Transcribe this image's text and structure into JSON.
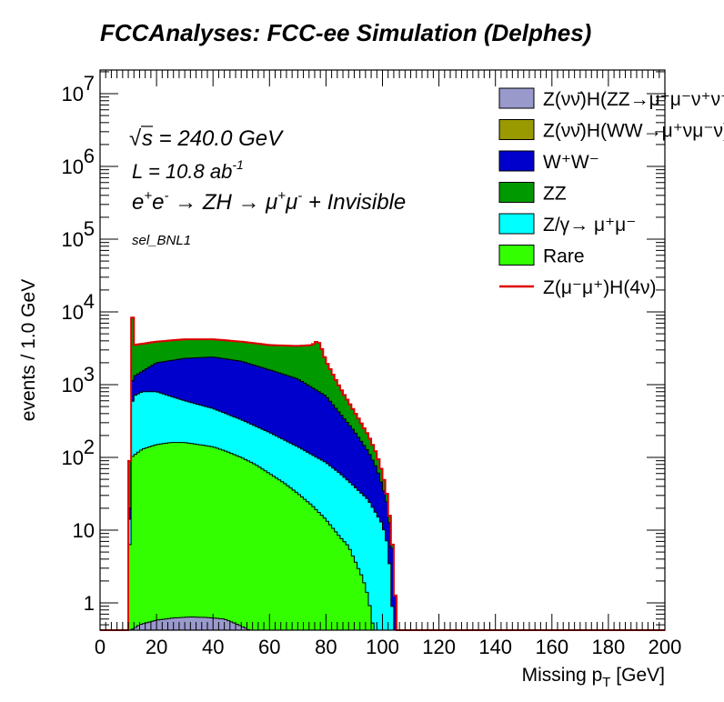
{
  "title": "FCCAnalyses: FCC-ee Simulation (Delphes)",
  "annotations": {
    "sqrt_s": "240.0 GeV",
    "lumi_value": "10.8 ab",
    "lumi_exp": "-1",
    "selection": "sel_BNL1"
  },
  "chart_data": {
    "type": "histogram",
    "title": "FCCAnalyses: FCC-ee Simulation (Delphes)",
    "xlabel": "Missing p_T [GeV]",
    "ylabel": "events / 1.0 GeV",
    "xlim": [
      0,
      200
    ],
    "ylim": [
      0.4,
      20000000
    ],
    "log_y": true,
    "stacked": true,
    "x_ticks": [
      0,
      20,
      40,
      60,
      80,
      100,
      120,
      140,
      160,
      180,
      200
    ],
    "y_ticks": [
      {
        "value": 1,
        "label": "1"
      },
      {
        "value": 10,
        "label": "10"
      },
      {
        "value": 100,
        "label": "10",
        "exp": "2"
      },
      {
        "value": 1000,
        "label": "10",
        "exp": "3"
      },
      {
        "value": 10000,
        "label": "10",
        "exp": "4"
      },
      {
        "value": 100000,
        "label": "10",
        "exp": "5"
      },
      {
        "value": 1000000,
        "label": "10",
        "exp": "6"
      },
      {
        "value": 10000000,
        "label": "10",
        "exp": "7"
      }
    ],
    "legend_position": "top-right",
    "series": [
      {
        "name": "Z(νν̄)H(ZZ→μ⁺μ⁻ν⁺ν⁻)",
        "color": "#9999cc",
        "points": [
          [
            10,
            0.4
          ],
          [
            14,
            0.5
          ],
          [
            20,
            0.58
          ],
          [
            26,
            0.62
          ],
          [
            32,
            0.64
          ],
          [
            38,
            0.63
          ],
          [
            44,
            0.6
          ],
          [
            48,
            0.52
          ],
          [
            52,
            0.44
          ],
          [
            54,
            0.4
          ],
          [
            105,
            0.4
          ]
        ]
      },
      {
        "name": "Z(νν̄)H(WW→μ⁺νμ⁻ν)",
        "color": "#999900",
        "points": [
          [
            10,
            0.4
          ],
          [
            105,
            0.4
          ]
        ]
      },
      {
        "name": "W⁺W⁻",
        "color": "#0000cc",
        "points": [
          [
            10,
            0.4
          ],
          [
            11,
            1000
          ],
          [
            12,
            1300
          ],
          [
            20,
            2000
          ],
          [
            30,
            2300
          ],
          [
            40,
            2400
          ],
          [
            50,
            2100
          ],
          [
            60,
            1600
          ],
          [
            70,
            1200
          ],
          [
            80,
            700
          ],
          [
            85,
            400
          ],
          [
            90,
            230
          ],
          [
            95,
            120
          ],
          [
            98,
            70
          ],
          [
            100,
            40
          ],
          [
            101,
            30
          ],
          [
            102,
            20
          ],
          [
            103,
            8
          ],
          [
            104,
            4
          ],
          [
            105,
            0.4
          ]
        ]
      },
      {
        "name": "ZZ",
        "color": "#009900",
        "points": [
          [
            10,
            0.4
          ],
          [
            11,
            20000
          ],
          [
            12,
            3500
          ],
          [
            20,
            3900
          ],
          [
            30,
            4200
          ],
          [
            40,
            4200
          ],
          [
            50,
            3900
          ],
          [
            60,
            3500
          ],
          [
            70,
            3400
          ],
          [
            75,
            3500
          ],
          [
            77,
            4000
          ],
          [
            78,
            3500
          ],
          [
            80,
            2100
          ],
          [
            85,
            900
          ],
          [
            90,
            430
          ],
          [
            95,
            200
          ],
          [
            98,
            110
          ],
          [
            100,
            60
          ],
          [
            101,
            40
          ],
          [
            102,
            25
          ],
          [
            103,
            10
          ],
          [
            104,
            4
          ],
          [
            105,
            0.4
          ]
        ]
      },
      {
        "name": "Z/γ→ μ⁺μ⁻",
        "color": "#00ffff",
        "points": [
          [
            10,
            0.4
          ],
          [
            11,
            500
          ],
          [
            12,
            700
          ],
          [
            15,
            800
          ],
          [
            20,
            800
          ],
          [
            30,
            600
          ],
          [
            40,
            470
          ],
          [
            50,
            330
          ],
          [
            60,
            220
          ],
          [
            70,
            140
          ],
          [
            80,
            85
          ],
          [
            85,
            60
          ],
          [
            90,
            40
          ],
          [
            95,
            26
          ],
          [
            100,
            12
          ],
          [
            102,
            6
          ],
          [
            103,
            2
          ],
          [
            104,
            0.4
          ]
        ]
      },
      {
        "name": "Rare",
        "color": "#33ff00",
        "points": [
          [
            10,
            0.4
          ],
          [
            11,
            100
          ],
          [
            15,
            130
          ],
          [
            20,
            150
          ],
          [
            25,
            160
          ],
          [
            30,
            160
          ],
          [
            35,
            150
          ],
          [
            40,
            140
          ],
          [
            45,
            120
          ],
          [
            50,
            100
          ],
          [
            55,
            80
          ],
          [
            60,
            60
          ],
          [
            65,
            45
          ],
          [
            70,
            32
          ],
          [
            75,
            22
          ],
          [
            80,
            14
          ],
          [
            85,
            8
          ],
          [
            88,
            6
          ],
          [
            90,
            4
          ],
          [
            93,
            2.2
          ],
          [
            95,
            1.2
          ],
          [
            96,
            0.7
          ],
          [
            97,
            0.4
          ]
        ]
      },
      {
        "name": "Z(μ⁻μ⁺)H(4ν)",
        "color": "#dd0000",
        "points": [
          [
            10,
            0.4
          ],
          [
            105,
            0.4
          ]
        ]
      }
    ]
  }
}
